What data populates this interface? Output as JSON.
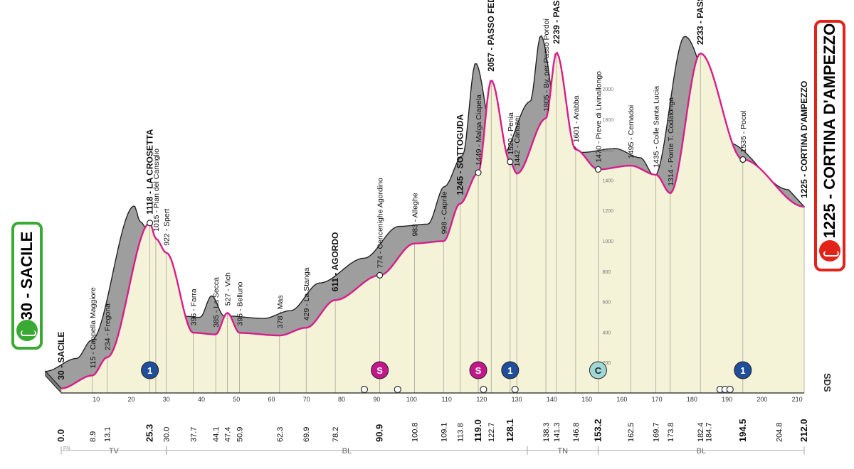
{
  "start": {
    "label": "30 - SACILE",
    "color": "#3aaa35"
  },
  "finish": {
    "label": "1225 - CORTINA D'AMPEZZO",
    "color": "#e2231a"
  },
  "brand": "SDS",
  "colors": {
    "profile_fill": "#f5f3d7",
    "profile_shadow": "#9e9e9e",
    "road_line": "#d61d8c",
    "gpm": "#1f4e9a",
    "sprint": "#c2188b",
    "cima_coppi": "#9fd8d6"
  },
  "chart_data": {
    "type": "area",
    "title": "",
    "xlabel": "",
    "ylabel": "",
    "ylim": [
      0,
      2400
    ],
    "xlim": [
      0,
      212
    ],
    "altitude_ticks": [
      200,
      400,
      600,
      800,
      1000,
      1200,
      1400,
      1600,
      1800,
      2000
    ],
    "x_ticks": [
      10,
      20,
      30,
      40,
      50,
      60,
      70,
      80,
      90,
      100,
      110,
      120,
      130,
      140,
      150,
      160,
      170,
      180,
      190,
      200,
      210
    ],
    "points": [
      {
        "km": 0.0,
        "alt": 30,
        "name": "SACILE",
        "bold": true,
        "label": "30 - SACILE"
      },
      {
        "km": 8.9,
        "alt": 115,
        "name": "Cappella Maggiore"
      },
      {
        "km": 13.1,
        "alt": 234,
        "name": "Fregona"
      },
      {
        "km": 25.3,
        "alt": 1118,
        "name": "LA CROSETTA",
        "bold": true
      },
      {
        "km": 27.0,
        "alt": 1015,
        "name": "Pian del Cansiglio"
      },
      {
        "km": 30.0,
        "alt": 922,
        "name": "Spert"
      },
      {
        "km": 37.7,
        "alt": 396,
        "name": "Farra"
      },
      {
        "km": 44.1,
        "alt": 385,
        "name": "La Secca"
      },
      {
        "km": 47.4,
        "alt": 527,
        "name": "Vich"
      },
      {
        "km": 50.9,
        "alt": 395,
        "name": "Belluno"
      },
      {
        "km": 62.3,
        "alt": 378,
        "name": "Mas"
      },
      {
        "km": 69.9,
        "alt": 429,
        "name": "La Stanga"
      },
      {
        "km": 78.2,
        "alt": 611,
        "name": "AGORDO",
        "bold": true
      },
      {
        "km": 90.9,
        "alt": 774,
        "name": "Cencenighe Agordino"
      },
      {
        "km": 100.8,
        "alt": 983,
        "name": "Alleghe"
      },
      {
        "km": 109.1,
        "alt": 998,
        "name": "Caprile"
      },
      {
        "km": 113.8,
        "alt": 1245,
        "name": "SOTTOGUDA",
        "bold": true
      },
      {
        "km": 119.0,
        "alt": 1449,
        "name": "Malga Ciapela"
      },
      {
        "km": 122.7,
        "alt": 2057,
        "name": "PASSO FEDAIA",
        "bold": true
      },
      {
        "km": 128.1,
        "alt": 1520,
        "name": "Penia"
      },
      {
        "km": 130.0,
        "alt": 1442,
        "name": "Canazei"
      },
      {
        "km": 138.3,
        "alt": 1805,
        "name": "Bv. per Passo Pordoi"
      },
      {
        "km": 141.3,
        "alt": 2239,
        "name": "PASSO PORDOI",
        "bold": true
      },
      {
        "km": 146.8,
        "alt": 1601,
        "name": "Arabba"
      },
      {
        "km": 153.2,
        "alt": 1470,
        "name": "Pieve di Livinallongo"
      },
      {
        "km": 162.5,
        "alt": 1495,
        "name": "Cernadoi"
      },
      {
        "km": 169.7,
        "alt": 1435,
        "name": "Colle Santa Lucia"
      },
      {
        "km": 173.8,
        "alt": 1314,
        "name": "Ponte T. Codalonga"
      },
      {
        "km": 182.4,
        "alt": 2233,
        "name": "PASSO GIAU",
        "bold": true
      },
      {
        "km": 194.5,
        "alt": 1535,
        "name": "Pocol"
      },
      {
        "km": 212.0,
        "alt": 1225,
        "name": "CORTINA D'AMPEZZO",
        "bold": true
      }
    ],
    "km_labels": [
      {
        "value": "0.0",
        "bold": true
      },
      {
        "value": "8.9"
      },
      {
        "value": "13.1"
      },
      {
        "value": "25.3",
        "bold": true
      },
      {
        "value": "30.0"
      },
      {
        "value": "37.7"
      },
      {
        "value": "44.1"
      },
      {
        "value": "47.4"
      },
      {
        "value": "50.9"
      },
      {
        "value": "62.3"
      },
      {
        "value": "69.9"
      },
      {
        "value": "78.2"
      },
      {
        "value": "90.9",
        "bold": true
      },
      {
        "value": "100.8"
      },
      {
        "value": "109.1"
      },
      {
        "value": "113.8"
      },
      {
        "value": "119.0",
        "bold": true
      },
      {
        "value": "122.7"
      },
      {
        "value": "128.1",
        "bold": true
      },
      {
        "value": "138.3"
      },
      {
        "value": "141.3"
      },
      {
        "value": "146.8"
      },
      {
        "value": "153.2",
        "bold": true
      },
      {
        "value": "162.5"
      },
      {
        "value": "169.7"
      },
      {
        "value": "173.8"
      },
      {
        "value": "182.4"
      },
      {
        "value": "184.7"
      },
      {
        "value": "194.5",
        "bold": true
      },
      {
        "value": "204.8"
      },
      {
        "value": "212.0",
        "bold": true
      }
    ],
    "markers": [
      {
        "type": "gpm",
        "km": 25.3,
        "label": "1"
      },
      {
        "type": "sprint",
        "km": 90.9,
        "label": "S"
      },
      {
        "type": "sprint",
        "km": 119.0,
        "label": "S"
      },
      {
        "type": "gpm",
        "km": 128.1,
        "label": "1"
      },
      {
        "type": "cima",
        "km": 153.2,
        "label": "C"
      },
      {
        "type": "gpm",
        "km": 194.5,
        "label": "1"
      }
    ],
    "tunnels": [
      {
        "km": 86.5,
        "count": 1
      },
      {
        "km": 96.0,
        "count": 1
      },
      {
        "km": 120.5,
        "count": 1
      },
      {
        "km": 129.5,
        "count": 1
      },
      {
        "km": 188.0,
        "count": 3
      }
    ],
    "provinces": [
      {
        "code": "TV",
        "from": 0,
        "to": 30
      },
      {
        "code": "BL",
        "from": 30,
        "to": 133
      },
      {
        "code": "TN",
        "from": 133,
        "to": 153.2
      },
      {
        "code": "BL",
        "from": 153.2,
        "to": 212
      }
    ],
    "region_start": "FN"
  }
}
